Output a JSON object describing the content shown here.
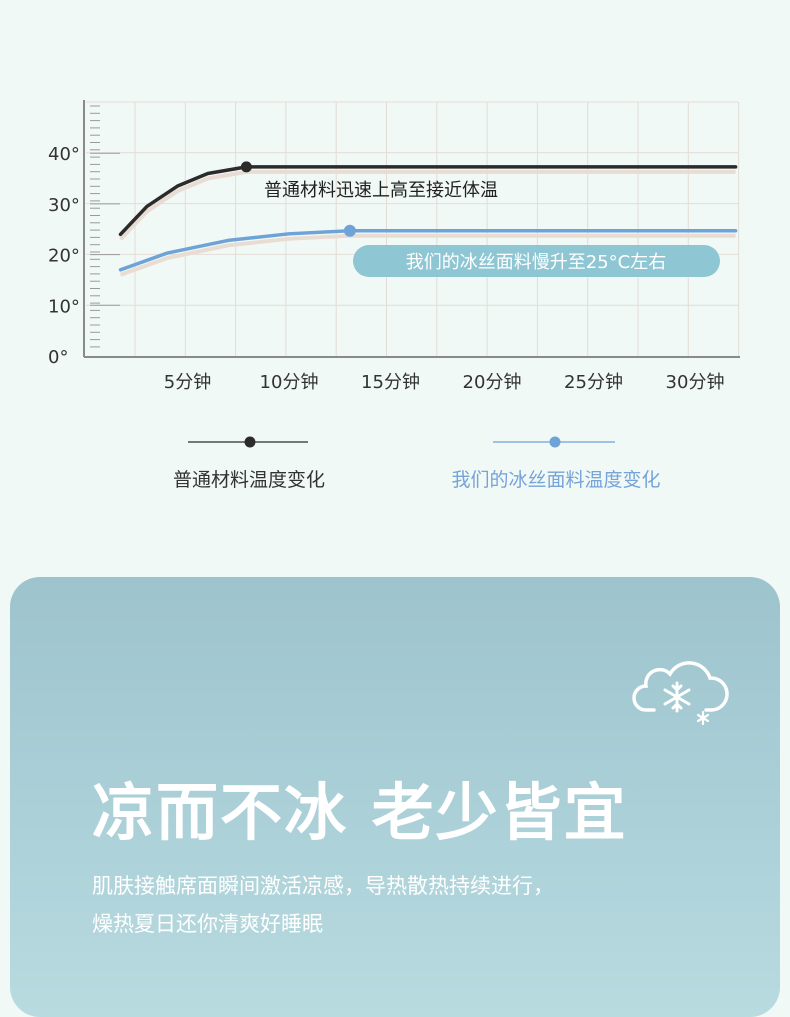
{
  "chart_data": {
    "type": "line",
    "xlabel": "",
    "ylabel": "",
    "x_ticks": [
      "5分钟",
      "10分钟",
      "15分钟",
      "20分钟",
      "25分钟",
      "30分钟"
    ],
    "x_tick_values": [
      5,
      10,
      15,
      20,
      25,
      30
    ],
    "y_ticks": [
      "40°",
      "30°",
      "20°",
      "10°",
      "0°"
    ],
    "y_tick_values": [
      40,
      30,
      20,
      10,
      0
    ],
    "ylim": [
      0,
      50
    ],
    "xlim": [
      0,
      32
    ],
    "grid": true,
    "legend_placement": "bottom",
    "series": [
      {
        "name": "普通材料温度变化",
        "color": "#2b2b2b",
        "x": [
          1.7,
          3,
          4.5,
          6,
          7.9,
          32
        ],
        "y": [
          24,
          29.5,
          33.5,
          36,
          37.3,
          37.3
        ],
        "marker_at": [
          7.9,
          37.3
        ],
        "annotation": "普通材料迅速上高至接近体温"
      },
      {
        "name": "我们的冰丝面料温度变化",
        "color": "#6ea3d8",
        "x": [
          1.7,
          4,
          7,
          10,
          13,
          32
        ],
        "y": [
          17,
          20.3,
          22.8,
          24.1,
          24.7,
          24.7
        ],
        "marker_at": [
          13,
          24.7
        ],
        "annotation": "我们的冰丝面料慢升至25°C左右"
      }
    ]
  },
  "panel": {
    "title": "凉而不冰 老少皆宜",
    "description_line1": "肌肤接触席面瞬间激活凉感，导热散热持续进行，",
    "description_line2": "燥热夏日还你清爽好睡眠",
    "icon": "snow-cloud-icon",
    "colors": {
      "panel": "#a6cbd5",
      "callout": "#8fc6d3"
    }
  }
}
